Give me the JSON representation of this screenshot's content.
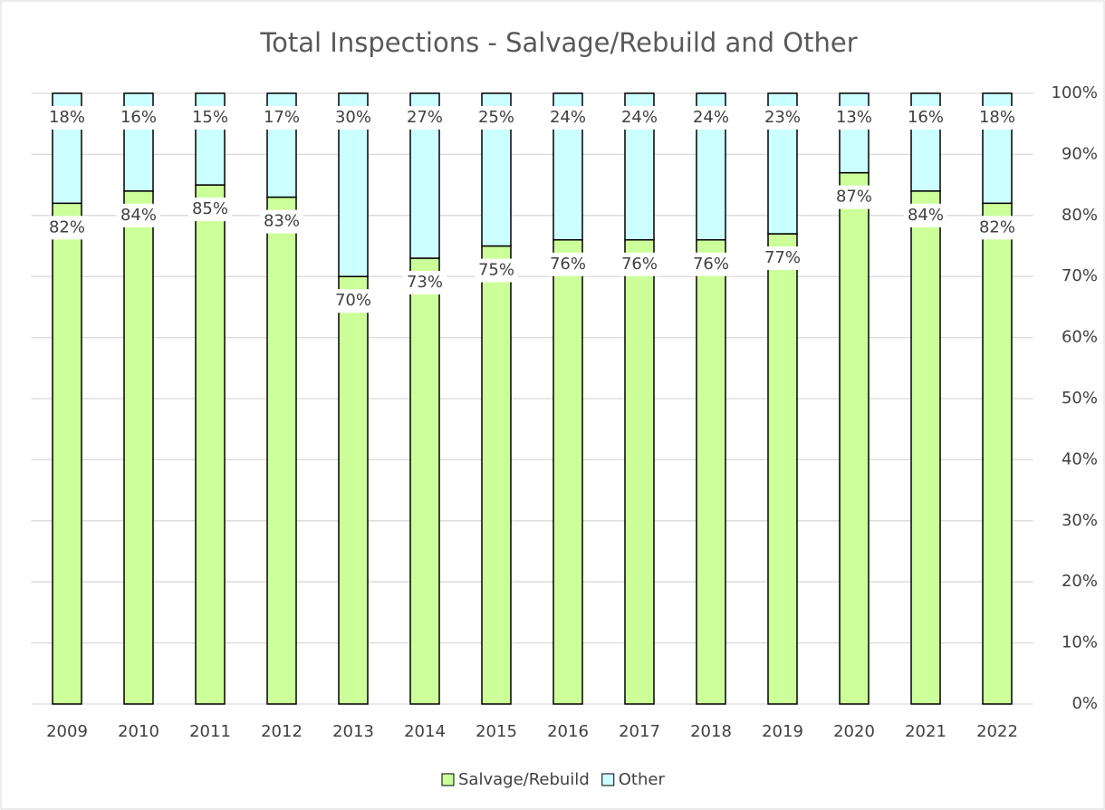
{
  "chart_data": {
    "type": "stacked_bar",
    "title": "Total Inspections - Salvage/Rebuild and Other",
    "categories": [
      "2009",
      "2010",
      "2011",
      "2012",
      "2013",
      "2014",
      "2015",
      "2016",
      "2017",
      "2018",
      "2019",
      "2020",
      "2021",
      "2022"
    ],
    "series": [
      {
        "name": "Salvage/Rebuild",
        "color": "#ccff99",
        "values": [
          82,
          84,
          85,
          83,
          70,
          73,
          75,
          76,
          76,
          76,
          77,
          87,
          84,
          82
        ],
        "value_labels": [
          "82%",
          "84%",
          "85%",
          "83%",
          "70%",
          "73%",
          "75%",
          "76%",
          "76%",
          "76%",
          "77%",
          "87%",
          "84%",
          "82%"
        ]
      },
      {
        "name": "Other",
        "color": "#ccffff",
        "values": [
          18,
          16,
          15,
          17,
          30,
          27,
          25,
          24,
          24,
          24,
          23,
          13,
          16,
          18
        ],
        "value_labels": [
          "18%",
          "16%",
          "15%",
          "17%",
          "30%",
          "27%",
          "25%",
          "24%",
          "24%",
          "24%",
          "23%",
          "13%",
          "16%",
          "18%"
        ]
      }
    ],
    "ylim": [
      0,
      100
    ],
    "yticks": [
      {
        "value": 0,
        "label": "0%"
      },
      {
        "value": 10,
        "label": "10%"
      },
      {
        "value": 20,
        "label": "20%"
      },
      {
        "value": 30,
        "label": "30%"
      },
      {
        "value": 40,
        "label": "40%"
      },
      {
        "value": 50,
        "label": "50%"
      },
      {
        "value": 60,
        "label": "60%"
      },
      {
        "value": 70,
        "label": "70%"
      },
      {
        "value": 80,
        "label": "80%"
      },
      {
        "value": 90,
        "label": "90%"
      },
      {
        "value": 100,
        "label": "100%"
      }
    ],
    "yaxis_side": "right",
    "grid": true,
    "legend": "bottom"
  }
}
